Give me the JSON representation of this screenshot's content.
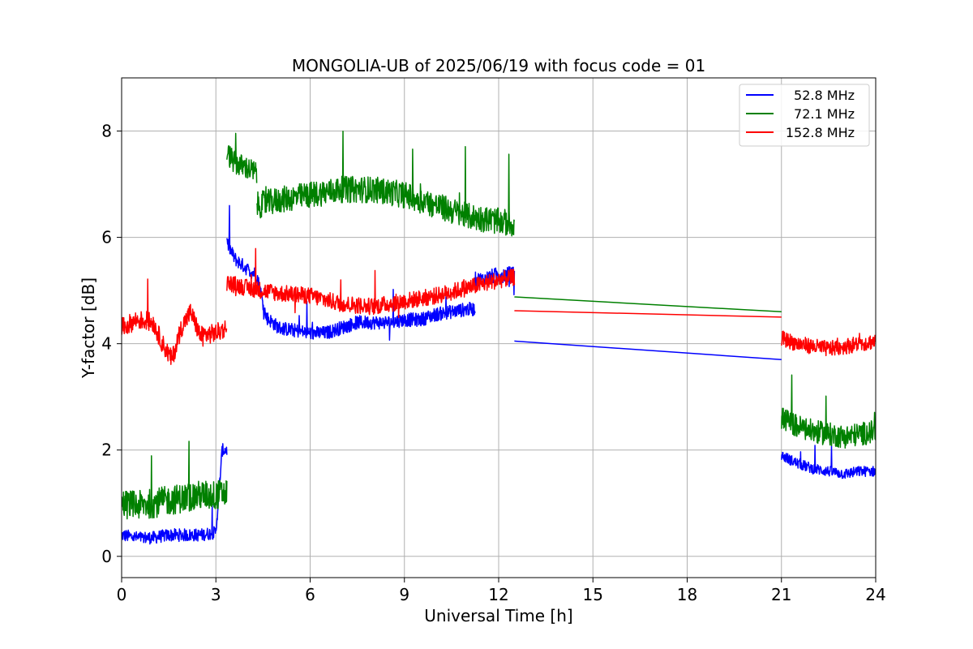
{
  "chart_data": {
    "type": "line",
    "title": "MONGOLIA-UB of 2025/06/19 with focus code = 01",
    "xlabel": "Universal Time [h]",
    "ylabel": "Y-factor [dB]",
    "xlim": [
      0,
      24
    ],
    "ylim": [
      -0.4,
      9.0
    ],
    "xticks": [
      0,
      3,
      6,
      9,
      12,
      15,
      18,
      21,
      24
    ],
    "yticks": [
      0,
      2,
      4,
      6,
      8
    ],
    "grid": true,
    "legend_position": "top-right",
    "series": [
      {
        "name": "52.8 MHz",
        "color": "#0000ff",
        "segments": [
          {
            "x": [
              0.0,
              0.5,
              1.0,
              1.5,
              2.0,
              2.5,
              3.0,
              3.2,
              3.35
            ],
            "y": [
              0.4,
              0.35,
              0.35,
              0.4,
              0.4,
              0.4,
              0.45,
              2.0,
              2.0
            ],
            "noise": 0.12
          },
          {
            "x": [
              3.35,
              3.6,
              4.0,
              4.3,
              4.6,
              5.0,
              5.5,
              6.0,
              6.5,
              7.0,
              7.5,
              8.0,
              8.5,
              9.0,
              9.5,
              10.0,
              10.5,
              11.0,
              11.25
            ],
            "y": [
              5.9,
              5.6,
              5.4,
              5.3,
              4.5,
              4.3,
              4.25,
              4.2,
              4.2,
              4.3,
              4.4,
              4.4,
              4.4,
              4.45,
              4.45,
              4.55,
              4.6,
              4.65,
              4.65
            ],
            "noise": 0.13
          },
          {
            "x": [
              11.25,
              11.5,
              12.0,
              12.5
            ],
            "y": [
              5.2,
              5.2,
              5.3,
              5.3
            ],
            "noise": 0.15
          },
          {
            "x": [
              12.5,
              21.0
            ],
            "y": [
              4.05,
              3.7
            ],
            "noise": 0
          },
          {
            "x": [
              21.0,
              21.5,
              22.0,
              22.5,
              23.0,
              23.5,
              24.0
            ],
            "y": [
              1.9,
              1.75,
              1.65,
              1.6,
              1.55,
              1.6,
              1.6
            ],
            "noise": 0.1
          }
        ]
      },
      {
        "name": "72.1 MHz",
        "color": "#008000",
        "segments": [
          {
            "x": [
              0.0,
              0.5,
              1.0,
              1.5,
              2.0,
              2.5,
              3.0,
              3.35
            ],
            "y": [
              1.0,
              0.95,
              1.0,
              1.05,
              1.1,
              1.15,
              1.15,
              1.2
            ],
            "noise": 0.28
          },
          {
            "x": [
              3.35,
              3.6,
              4.0,
              4.3
            ],
            "y": [
              7.6,
              7.4,
              7.3,
              7.2
            ],
            "noise": 0.22
          },
          {
            "x": [
              4.3,
              5.0,
              6.0,
              7.0,
              8.0,
              9.0,
              10.0,
              11.0,
              12.0,
              12.5
            ],
            "y": [
              6.6,
              6.7,
              6.8,
              6.9,
              6.9,
              6.8,
              6.6,
              6.4,
              6.3,
              6.25
            ],
            "noise": 0.25
          },
          {
            "x": [
              12.5,
              21.0
            ],
            "y": [
              4.88,
              4.6
            ],
            "noise": 0
          },
          {
            "x": [
              21.0,
              21.5,
              22.0,
              22.5,
              23.0,
              23.5,
              24.0
            ],
            "y": [
              2.6,
              2.45,
              2.35,
              2.3,
              2.25,
              2.3,
              2.35
            ],
            "noise": 0.22
          }
        ]
      },
      {
        "name": "152.8 MHz",
        "color": "#ff0000",
        "segments": [
          {
            "x": [
              0.0,
              0.5,
              1.0,
              1.3,
              1.6,
              1.9,
              2.2,
              2.5,
              3.0,
              3.35
            ],
            "y": [
              4.3,
              4.45,
              4.4,
              4.0,
              3.7,
              4.3,
              4.6,
              4.15,
              4.2,
              4.3
            ],
            "noise": 0.18
          },
          {
            "x": [
              3.35,
              4.0,
              5.0,
              6.0,
              7.0,
              8.0,
              9.0,
              10.0,
              11.0,
              12.0,
              12.5
            ],
            "y": [
              5.15,
              5.05,
              4.95,
              4.9,
              4.75,
              4.7,
              4.8,
              4.9,
              5.05,
              5.2,
              5.25
            ],
            "noise": 0.16
          },
          {
            "x": [
              12.5,
              21.0
            ],
            "y": [
              4.62,
              4.5
            ],
            "noise": 0
          },
          {
            "x": [
              21.0,
              21.5,
              22.0,
              22.5,
              23.0,
              23.5,
              24.0
            ],
            "y": [
              4.1,
              4.0,
              3.95,
              3.9,
              3.95,
              4.0,
              4.05
            ],
            "noise": 0.15
          }
        ]
      }
    ]
  }
}
